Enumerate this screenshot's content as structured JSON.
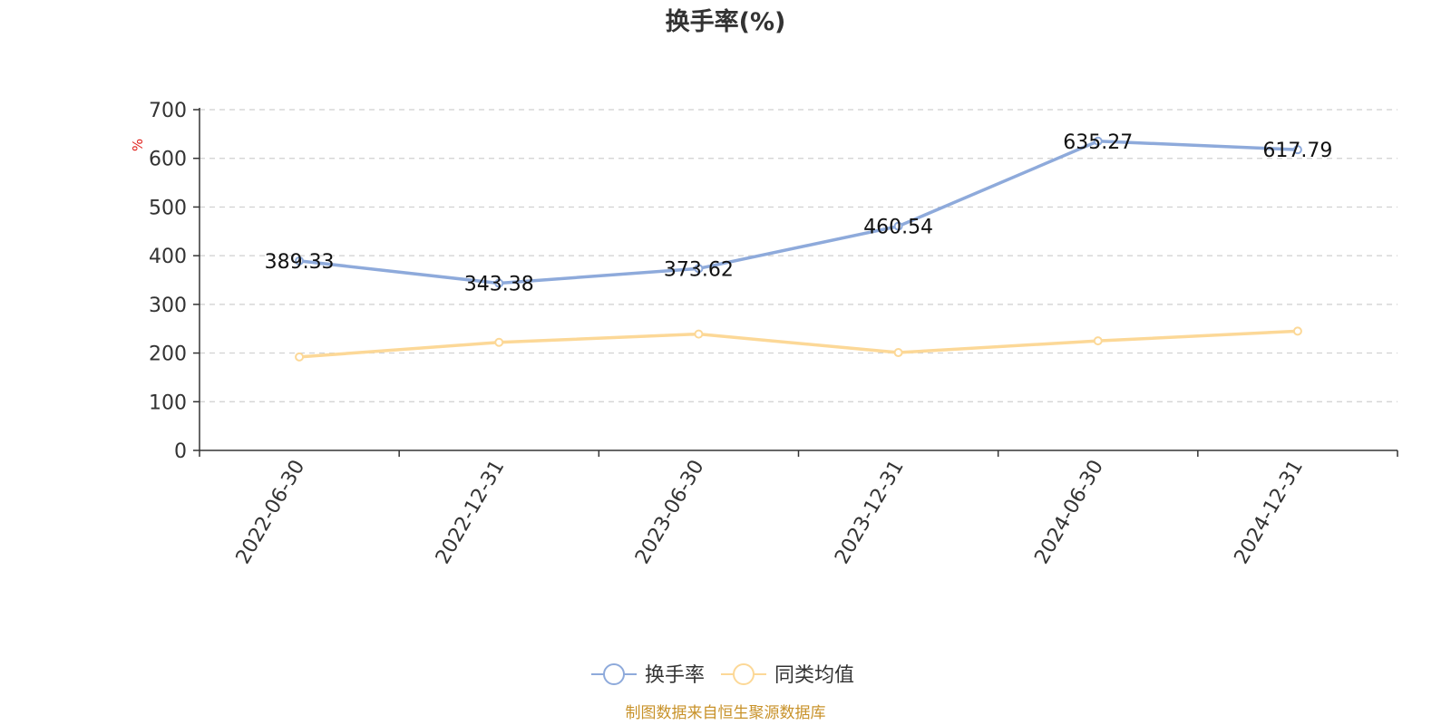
{
  "chart_data": {
    "type": "line",
    "title": "换手率(%)",
    "ylabel": "%",
    "xlabel": "",
    "categories": [
      "2022-06-30",
      "2022-12-31",
      "2023-06-30",
      "2023-12-31",
      "2024-06-30",
      "2024-12-31"
    ],
    "ylim": [
      0,
      700
    ],
    "yticks": [
      0,
      100,
      200,
      300,
      400,
      500,
      600,
      700
    ],
    "grid": true,
    "legend_position": "bottom-center",
    "series": [
      {
        "name": "换手率",
        "values": [
          389.33,
          343.38,
          373.62,
          460.54,
          635.27,
          617.79
        ],
        "data_labels": [
          "389.33",
          "343.38",
          "373.62",
          "460.54",
          "635.27",
          "617.79"
        ],
        "color": "#8eaadb"
      },
      {
        "name": "同类均值",
        "values": [
          192,
          222,
          239,
          201,
          225,
          245
        ],
        "color": "#fcd897"
      }
    ],
    "source_note": "制图数据来自恒生聚源数据库"
  }
}
